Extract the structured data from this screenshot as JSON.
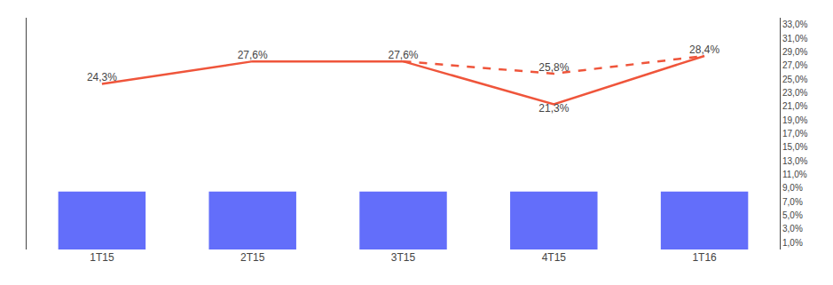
{
  "chart_data": {
    "type": "bar",
    "categories": [
      "1T15",
      "2T15",
      "3T15",
      "4T15",
      "1T16"
    ],
    "series": [
      {
        "type": "bar",
        "color": "#636efa",
        "values": [
          8.5,
          8.5,
          8.5,
          8.5,
          8.5
        ]
      },
      {
        "type": "line",
        "line_style": "solid",
        "color": "#ef553b",
        "axis": "y2",
        "values": [
          24.3,
          27.6,
          27.6,
          21.3,
          28.4
        ],
        "value_labels": [
          "24,3%",
          "27,6%",
          "27,6%",
          "21,3%",
          "28,4%"
        ],
        "data_labels": true
      },
      {
        "type": "line",
        "line_style": "dashed",
        "color": "#ef553b",
        "axis": "y2",
        "values": [
          null,
          null,
          27.6,
          25.8,
          28.4
        ],
        "value_labels": [
          null,
          null,
          null,
          "25,8%",
          null
        ],
        "data_labels": true
      }
    ],
    "ylim": [
      0,
      34
    ],
    "yticks": [],
    "y2lim": [
      0,
      34
    ],
    "y2ticks": [
      {
        "value": 1,
        "label": "1,0%"
      },
      {
        "value": 3,
        "label": "3,0%"
      },
      {
        "value": 5,
        "label": "5,0%"
      },
      {
        "value": 7,
        "label": "7,0%"
      },
      {
        "value": 9,
        "label": "9,0%"
      },
      {
        "value": 11,
        "label": "11,0%"
      },
      {
        "value": 13,
        "label": "13,0%"
      },
      {
        "value": 15,
        "label": "15,0%"
      },
      {
        "value": 17,
        "label": "17,0%"
      },
      {
        "value": 19,
        "label": "19,0%"
      },
      {
        "value": 21,
        "label": "21,0%"
      },
      {
        "value": 23,
        "label": "23,0%"
      },
      {
        "value": 25,
        "label": "25,0%"
      },
      {
        "value": 27,
        "label": "27,0%"
      },
      {
        "value": 29,
        "label": "29,0%"
      },
      {
        "value": 31,
        "label": "31,0%"
      },
      {
        "value": 33,
        "label": "33,0%"
      }
    ],
    "grid": false
  }
}
